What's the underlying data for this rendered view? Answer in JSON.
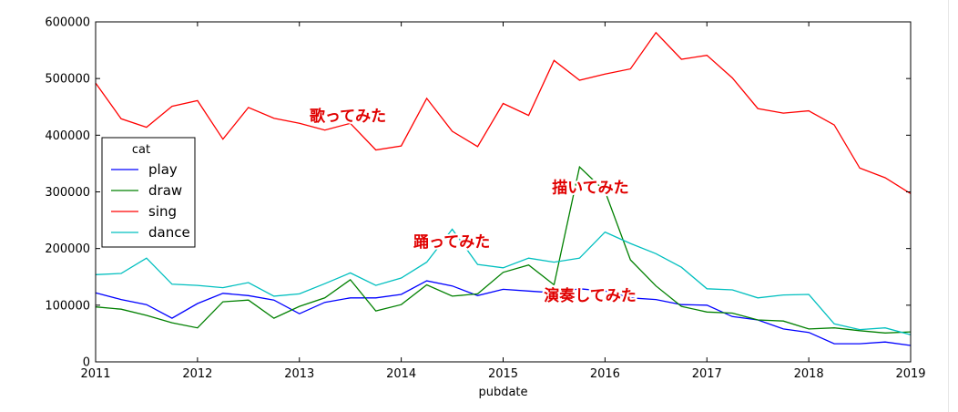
{
  "chart_data": {
    "type": "line",
    "xlabel": "pubdate",
    "x_start": 2011.0,
    "x_step": 0.25,
    "xlim": [
      2011,
      2019
    ],
    "ylim": [
      0,
      600000
    ],
    "x_ticks": [
      2011,
      2012,
      2013,
      2014,
      2015,
      2016,
      2017,
      2018,
      2019
    ],
    "y_ticks": [
      0,
      100000,
      200000,
      300000,
      400000,
      500000,
      600000
    ],
    "legend": {
      "title": "cat",
      "placement": "left"
    },
    "series": [
      {
        "name": "play",
        "color": "#0000ff",
        "values": [
          122000,
          110000,
          101000,
          77000,
          103000,
          121000,
          117000,
          109000,
          85000,
          105000,
          113000,
          113000,
          119000,
          143000,
          134000,
          117000,
          128000,
          125000,
          122000,
          129000,
          125000,
          113000,
          110000,
          101000,
          100000,
          80000,
          74000,
          58000,
          52000,
          32000,
          32000,
          35000,
          29000
        ]
      },
      {
        "name": "draw",
        "color": "#008000",
        "values": [
          97000,
          93000,
          82000,
          69000,
          60000,
          106000,
          109000,
          77000,
          98000,
          113000,
          145000,
          90000,
          101000,
          136000,
          116000,
          120000,
          158000,
          171000,
          136000,
          344000,
          301000,
          180000,
          134000,
          98000,
          88000,
          86000,
          74000,
          72000,
          58000,
          60000,
          55000,
          51000,
          53000
        ]
      },
      {
        "name": "sing",
        "color": "#ff0000",
        "values": [
          492000,
          429000,
          414000,
          451000,
          461000,
          393000,
          449000,
          430000,
          421000,
          409000,
          421000,
          374000,
          381000,
          465000,
          407000,
          380000,
          456000,
          435000,
          532000,
          497000,
          508000,
          517000,
          581000,
          534000,
          541000,
          501000,
          447000,
          439000,
          443000,
          418000,
          342000,
          325000,
          297000
        ]
      },
      {
        "name": "dance",
        "color": "#00bfbf",
        "values": [
          154000,
          156000,
          183000,
          137000,
          135000,
          131000,
          140000,
          116000,
          120000,
          138000,
          157000,
          135000,
          148000,
          176000,
          234000,
          172000,
          166000,
          183000,
          176000,
          183000,
          229000,
          209000,
          191000,
          167000,
          129000,
          127000,
          113000,
          118000,
          119000,
          67000,
          57000,
          60000,
          48000
        ]
      }
    ],
    "annotations": [
      {
        "text": "歌ってみた",
        "x": 2013.1,
        "y": 425000
      },
      {
        "text": "描いてみた",
        "x": 2015.48,
        "y": 298000
      },
      {
        "text": "踊ってみた",
        "x": 2014.12,
        "y": 203000
      },
      {
        "text": "演奏してみた",
        "x": 2015.4,
        "y": 108000
      }
    ]
  }
}
